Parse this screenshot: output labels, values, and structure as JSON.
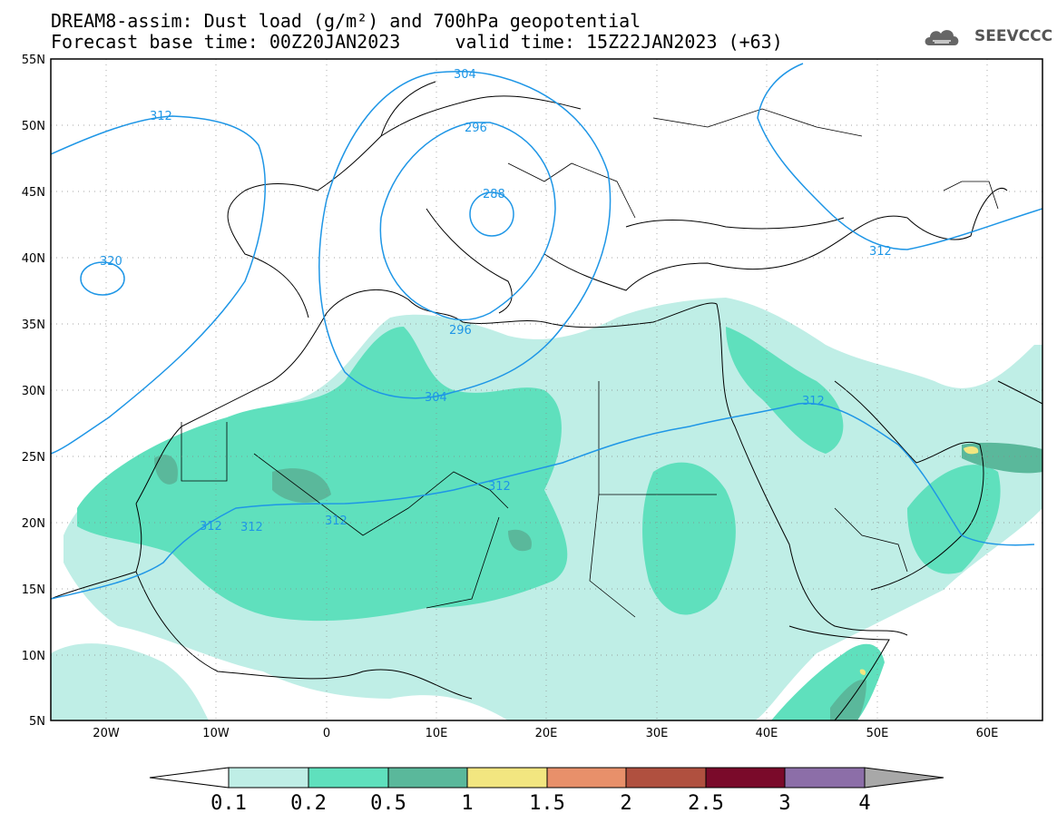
{
  "title": {
    "line1": "DREAM8-assim: Dust load (g/m²) and 700hPa geopotential",
    "line2": "Forecast base time: 00Z20JAN2023     valid time: 15Z22JAN2023 (+63)"
  },
  "logo": {
    "text": "SEEVCCC",
    "icon": "cloud-icon"
  },
  "axes": {
    "lat_labels": [
      "55N",
      "50N",
      "45N",
      "40N",
      "35N",
      "30N",
      "25N",
      "20N",
      "15N",
      "10N",
      "5N"
    ],
    "lon_labels": [
      "20W",
      "10W",
      "0",
      "10E",
      "20E",
      "30E",
      "40E",
      "50E",
      "60E"
    ]
  },
  "colorbar": {
    "labels": [
      "0.1",
      "0.2",
      "0.5",
      "1",
      "1.5",
      "2",
      "2.5",
      "3",
      "4"
    ],
    "colors": [
      "#bfeee6",
      "#5fe0bd",
      "#5ab89b",
      "#f2e680",
      "#e8906a",
      "#b0503f",
      "#7a0a2a",
      "#8c6ea8",
      "#a8a8a8"
    ]
  },
  "contour_labels": [
    "312",
    "320",
    "304",
    "296",
    "288",
    "296",
    "304",
    "312",
    "312",
    "312",
    "312",
    "312",
    "312"
  ],
  "colors": {
    "contour": "#1e96e6",
    "dust_low": "#bfeee6",
    "dust_mid": "#5fe0bd",
    "dust_high": "#5ab89b",
    "dust_peak": "#f2e680"
  }
}
